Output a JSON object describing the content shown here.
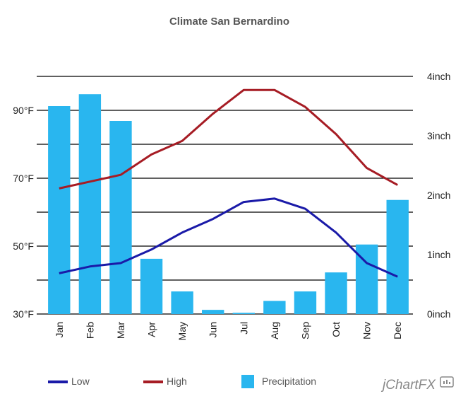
{
  "chart_data": {
    "type": "bar",
    "title": "Climate San Bernardino",
    "categories": [
      "Jan",
      "Feb",
      "Mar",
      "Apr",
      "May",
      "Jun",
      "Jul",
      "Aug",
      "Sep",
      "Oct",
      "Nov",
      "Dec"
    ],
    "y_left": {
      "min": 30,
      "max": 100,
      "ticks": [
        "30°F",
        "50°F",
        "70°F",
        "90°F"
      ],
      "tick_values": [
        30,
        50,
        70,
        90
      ]
    },
    "y_right": {
      "min": 0,
      "max": 4,
      "ticks": [
        "0inch",
        "1inch",
        "2inch",
        "3inch",
        "4inch"
      ],
      "tick_values": [
        0,
        1,
        2,
        3,
        4
      ]
    },
    "grid": true,
    "legend_position": "bottom",
    "series": [
      {
        "name": "Low",
        "type": "line",
        "axis": "left",
        "color": "#1a1aa8",
        "values": [
          42,
          44,
          45,
          49,
          54,
          58,
          63,
          64,
          61,
          54,
          45,
          41
        ]
      },
      {
        "name": "High",
        "type": "line",
        "axis": "left",
        "color": "#a61c24",
        "values": [
          67,
          69,
          71,
          77,
          81,
          89,
          96,
          96,
          91,
          83,
          73,
          68
        ]
      },
      {
        "name": "Precipitation",
        "type": "bar",
        "axis": "right",
        "color": "#29b6ef",
        "values": [
          3.5,
          3.7,
          3.25,
          0.93,
          0.38,
          0.07,
          0.02,
          0.22,
          0.38,
          0.7,
          1.17,
          1.92
        ]
      }
    ]
  },
  "branding": {
    "logo": "jChartFX"
  }
}
